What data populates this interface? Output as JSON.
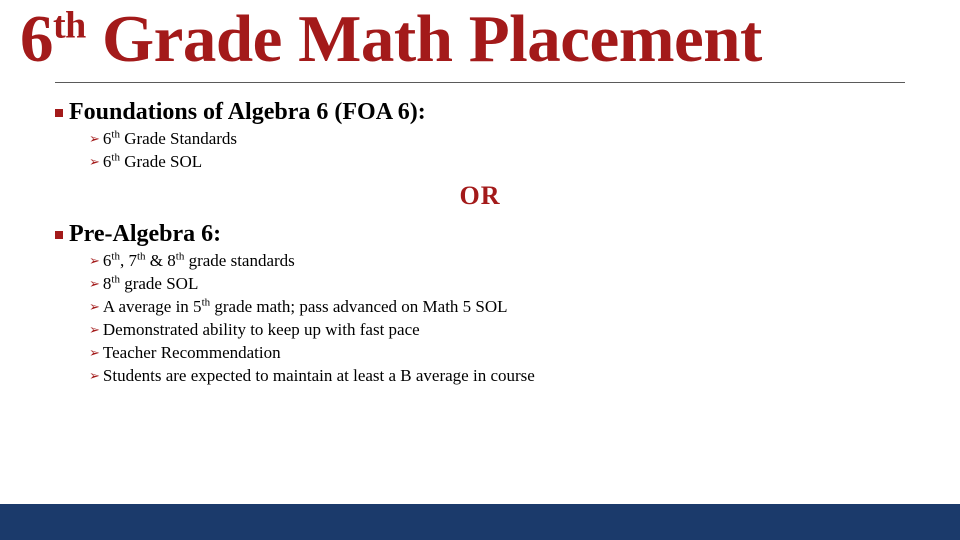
{
  "colors": {
    "accent_red": "#a31a1a",
    "footer_blue": "#1b3a6b",
    "rule_gray": "#5a5a5a",
    "text_black": "#000000",
    "background": "#ffffff"
  },
  "title": {
    "prefix_number": "6",
    "prefix_super": "th",
    "rest": " Grade Math Placement",
    "fontsize": 67
  },
  "section1": {
    "heading": "Foundations of Algebra 6 (FOA 6):",
    "items": [
      {
        "html": "6<span class='sup'>th</span> Grade Standards"
      },
      {
        "html": "6<span class='sup'>th</span> Grade SOL"
      }
    ]
  },
  "or_text": "OR",
  "section2": {
    "heading": "Pre-Algebra 6:",
    "items": [
      {
        "html": "6<span class='sup'>th</span>, 7<span class='sup'>th</span> &amp; 8<span class='sup'>th</span> grade standards"
      },
      {
        "html": "8<span class='sup'>th</span> grade SOL"
      },
      {
        "html": "A average in 5<span class='sup'>th</span> grade math; pass advanced on Math 5 SOL"
      },
      {
        "html": "Demonstrated ability to keep up with fast pace"
      },
      {
        "html": "Teacher Recommendation"
      },
      {
        "html": "Students are expected to maintain at least a B average in course"
      }
    ]
  }
}
